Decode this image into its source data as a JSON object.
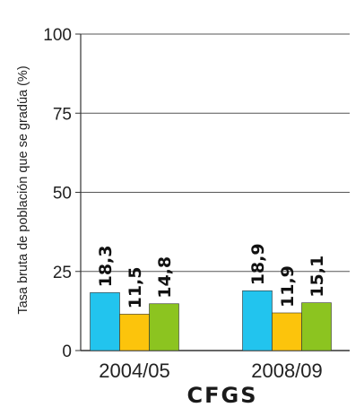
{
  "chart_data": {
    "type": "bar",
    "title": "",
    "xlabel": "CFGS",
    "ylabel": "Tasa bruta de población que se gradúa (%)",
    "ylim": [
      0,
      100
    ],
    "yticks": [
      0,
      25,
      50,
      75,
      100
    ],
    "grid": true,
    "categories": [
      "2004/05",
      "2008/09"
    ],
    "series": [
      {
        "values": [
          18.3,
          18.9
        ],
        "labels": [
          "18,3",
          "18,9"
        ],
        "color": "#22c4ee"
      },
      {
        "values": [
          11.5,
          11.9
        ],
        "labels": [
          "11,5",
          "11,9"
        ],
        "color": "#fcc40c"
      },
      {
        "values": [
          14.8,
          15.1
        ],
        "labels": [
          "14,8",
          "15,1"
        ],
        "color": "#8cc420"
      }
    ]
  }
}
